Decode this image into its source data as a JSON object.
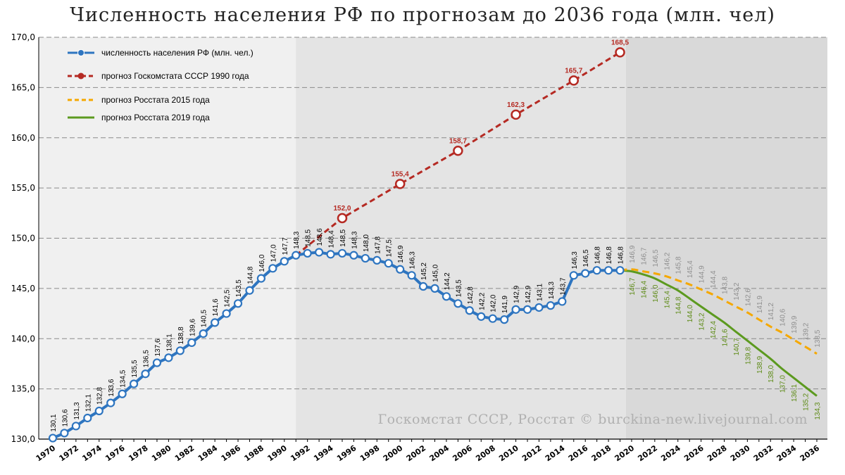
{
  "title": "Численность населения РФ по прогнозам до 2036 года (млн. чел)",
  "watermark": "Госкомстат СССР, Росстат © burckina-new.livejournal.com",
  "chart_data": {
    "type": "line",
    "xlim": [
      1970,
      2036
    ],
    "ylim": [
      130,
      170
    ],
    "grid": true,
    "x_ticks": [
      1970,
      1972,
      1974,
      1976,
      1978,
      1980,
      1982,
      1984,
      1986,
      1988,
      1990,
      1992,
      1994,
      1996,
      1998,
      2000,
      2002,
      2004,
      2006,
      2008,
      2010,
      2012,
      2014,
      2016,
      2018,
      2020,
      2022,
      2024,
      2026,
      2028,
      2030,
      2032,
      2034,
      2036
    ],
    "y_ticks": [
      "130,0",
      "135,0",
      "140,0",
      "145,0",
      "150,0",
      "155,0",
      "160,0",
      "165,0",
      "170,0"
    ],
    "legend_position": "top-left",
    "shaded_regions": [
      {
        "from": 1970,
        "to": 1991,
        "color": "#f0f0f0"
      },
      {
        "from": 1991,
        "to": 2019.5,
        "color": "#e4e4e4"
      },
      {
        "from": 2019.5,
        "to": 2036.8,
        "color": "#d9d9d9"
      }
    ],
    "series": [
      {
        "name": "численность населения РФ (млн. чел.)",
        "color": "#2e75c0",
        "style": "solid-markers",
        "x": [
          1970,
          1971,
          1972,
          1973,
          1974,
          1975,
          1976,
          1977,
          1978,
          1979,
          1980,
          1981,
          1982,
          1983,
          1984,
          1985,
          1986,
          1987,
          1988,
          1989,
          1990,
          1991,
          1992,
          1993,
          1994,
          1995,
          1996,
          1997,
          1998,
          1999,
          2000,
          2001,
          2002,
          2003,
          2004,
          2005,
          2006,
          2007,
          2008,
          2009,
          2010,
          2011,
          2012,
          2013,
          2014,
          2015,
          2016,
          2017,
          2018,
          2019
        ],
        "y": [
          130.1,
          130.6,
          131.3,
          132.1,
          132.8,
          133.6,
          134.5,
          135.5,
          136.5,
          137.6,
          138.1,
          138.8,
          139.6,
          140.5,
          141.6,
          142.5,
          143.5,
          144.8,
          146.0,
          147.0,
          147.7,
          148.3,
          148.5,
          148.6,
          148.4,
          148.5,
          148.3,
          148.0,
          147.8,
          147.5,
          146.9,
          146.3,
          145.2,
          145.0,
          144.2,
          143.5,
          142.8,
          142.2,
          142.0,
          141.9,
          142.9,
          142.9,
          143.1,
          143.3,
          143.7,
          146.3,
          146.5,
          146.8,
          146.8,
          146.8
        ],
        "labels": [
          "130,1",
          "130,6",
          "131,3",
          "132,1",
          "132,8",
          "133,6",
          "134,5",
          "135,5",
          "136,5",
          "137,6",
          "138,1",
          "138,8",
          "139,6",
          "140,5",
          "141,6",
          "142,5",
          "143,5",
          "144,8",
          "146,0",
          "147,0",
          "147,7",
          "148,3",
          "148,5",
          "148,6",
          "148,4",
          "148,5",
          "148,3",
          "148,0",
          "147,8",
          "147,5",
          "146,9",
          "146,3",
          "145,2",
          "145,0",
          "144,2",
          "143,5",
          "142,8",
          "142,2",
          "142,0",
          "141,9",
          "142,9",
          "142,9",
          "143,1",
          "143,3",
          "143,7",
          "146,3",
          "146,5",
          "146,8",
          "146,8",
          "146,8"
        ]
      },
      {
        "name": "прогноз Госкомстата СССР 1990 года",
        "color": "#b52a23",
        "style": "dashed-markers",
        "x": [
          1991,
          1995,
          2000,
          2005,
          2010,
          2015,
          2019
        ],
        "y": [
          148.3,
          152.0,
          155.4,
          158.7,
          162.3,
          165.7,
          168.5
        ],
        "label_x": [
          1995,
          2000,
          2005,
          2010,
          2015,
          2019
        ],
        "labels": [
          "152,0",
          "155,4",
          "158,7",
          "162,3",
          "165,7",
          "168,5"
        ]
      },
      {
        "name": "прогноз Росстата 2015 года",
        "color": "#f5a800",
        "style": "dashed",
        "label_color": "#8f8f8f",
        "x": [
          2019,
          2020,
          2021,
          2022,
          2023,
          2024,
          2025,
          2026,
          2027,
          2028,
          2029,
          2030,
          2031,
          2032,
          2033,
          2034,
          2035,
          2036
        ],
        "y": [
          146.8,
          146.9,
          146.7,
          146.5,
          146.2,
          145.8,
          145.4,
          144.9,
          144.4,
          143.8,
          143.2,
          142.6,
          141.9,
          141.2,
          140.6,
          139.9,
          139.2,
          138.5
        ],
        "label_x": [
          2020,
          2021,
          2022,
          2023,
          2024,
          2025,
          2026,
          2027,
          2028,
          2029,
          2030,
          2031,
          2032,
          2033,
          2034,
          2035,
          2036
        ],
        "labels": [
          "146,9",
          "146,7",
          "146,5",
          "146,2",
          "145,8",
          "145,4",
          "144,9",
          "144,4",
          "143,8",
          "143,2",
          "142,6",
          "141,9",
          "141,2",
          "140,6",
          "139,9",
          "139,2",
          "138,5"
        ]
      },
      {
        "name": "прогноз Росстата 2019 года",
        "color": "#5c9a1f",
        "style": "solid",
        "label_color": "#5c8a14",
        "x": [
          2019,
          2020,
          2021,
          2022,
          2023,
          2024,
          2025,
          2026,
          2027,
          2028,
          2029,
          2030,
          2031,
          2032,
          2033,
          2034,
          2035,
          2036
        ],
        "y": [
          146.8,
          146.7,
          146.4,
          146.0,
          145.4,
          144.8,
          144.0,
          143.2,
          142.4,
          141.6,
          140.7,
          139.8,
          138.9,
          138.0,
          137.0,
          136.1,
          135.2,
          134.3
        ],
        "label_x": [
          2020,
          2021,
          2022,
          2023,
          2024,
          2025,
          2026,
          2027,
          2028,
          2029,
          2030,
          2031,
          2032,
          2033,
          2034,
          2035,
          2036
        ],
        "labels": [
          "146,7",
          "146,4",
          "146,0",
          "145,4",
          "144,8",
          "144,0",
          "143,2",
          "142,4",
          "141,6",
          "140,7",
          "139,8",
          "138,9",
          "138,0",
          "137,0",
          "136,1",
          "135,2",
          "134,3"
        ]
      }
    ]
  }
}
